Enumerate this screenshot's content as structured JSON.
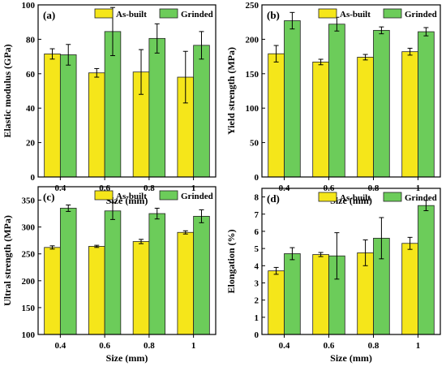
{
  "colors": {
    "as_built": "#f5e61a",
    "grinded": "#6ccc5a",
    "edge": "#222222"
  },
  "chart_data": [
    {
      "type": "bar",
      "panel": "(a)",
      "categories": [
        "0.4",
        "0.6",
        "0.8",
        "1"
      ],
      "xlabel": "Size (mm)",
      "ylabel": "Elastic modulus (GPa)",
      "ylim": [
        0,
        100
      ],
      "yticks": [
        0,
        20,
        40,
        60,
        80,
        100
      ],
      "legend_position": "top",
      "series": [
        {
          "name": "As-built",
          "values": [
            71.5,
            60.5,
            61,
            58
          ],
          "errors": [
            3,
            2.5,
            13,
            15
          ]
        },
        {
          "name": "Grinded",
          "values": [
            71,
            84.5,
            80.5,
            76.5
          ],
          "errors": [
            6,
            14,
            8.5,
            8
          ]
        }
      ]
    },
    {
      "type": "bar",
      "panel": "(b)",
      "categories": [
        "0.4",
        "0.6",
        "0.8",
        "1"
      ],
      "xlabel": "Size (mm)",
      "ylabel": "Yield strength (MPa)",
      "ylim": [
        0,
        250
      ],
      "yticks": [
        0,
        50,
        100,
        150,
        200,
        250
      ],
      "legend_position": "top",
      "series": [
        {
          "name": "As-built",
          "values": [
            179,
            167,
            174,
            182
          ],
          "errors": [
            12,
            4,
            4,
            5
          ]
        },
        {
          "name": "Grinded",
          "values": [
            227,
            222,
            213,
            211
          ],
          "errors": [
            12,
            10,
            5,
            6
          ]
        }
      ]
    },
    {
      "type": "bar",
      "panel": "(c)",
      "categories": [
        "0.4",
        "0.6",
        "0.8",
        "1"
      ],
      "xlabel": "Size (mm)",
      "ylabel": "Ultral strength (MPa)",
      "ylim": [
        100,
        375
      ],
      "yticks": [
        100,
        150,
        200,
        250,
        300,
        350
      ],
      "legend_position": "top",
      "series": [
        {
          "name": "As-built",
          "values": [
            262,
            264,
            273,
            290
          ],
          "errors": [
            3,
            2,
            4,
            3
          ]
        },
        {
          "name": "Grinded",
          "values": [
            335,
            330,
            325,
            320
          ],
          "errors": [
            6,
            16,
            10,
            12
          ]
        }
      ]
    },
    {
      "type": "bar",
      "panel": "(d)",
      "categories": [
        "0.4",
        "0.6",
        "0.8",
        "1"
      ],
      "xlabel": "Size (mm)",
      "ylabel": "Elongation (%)",
      "ylim": [
        0,
        8.5
      ],
      "yticks": [
        0,
        1,
        2,
        3,
        4,
        5,
        6,
        7,
        8
      ],
      "legend_position": "top",
      "series": [
        {
          "name": "As-built",
          "values": [
            3.7,
            4.65,
            4.75,
            5.3
          ],
          "errors": [
            0.2,
            0.12,
            0.75,
            0.35
          ]
        },
        {
          "name": "Grinded",
          "values": [
            4.7,
            4.57,
            5.6,
            7.5
          ],
          "errors": [
            0.35,
            1.35,
            1.2,
            0.3
          ]
        }
      ]
    }
  ]
}
